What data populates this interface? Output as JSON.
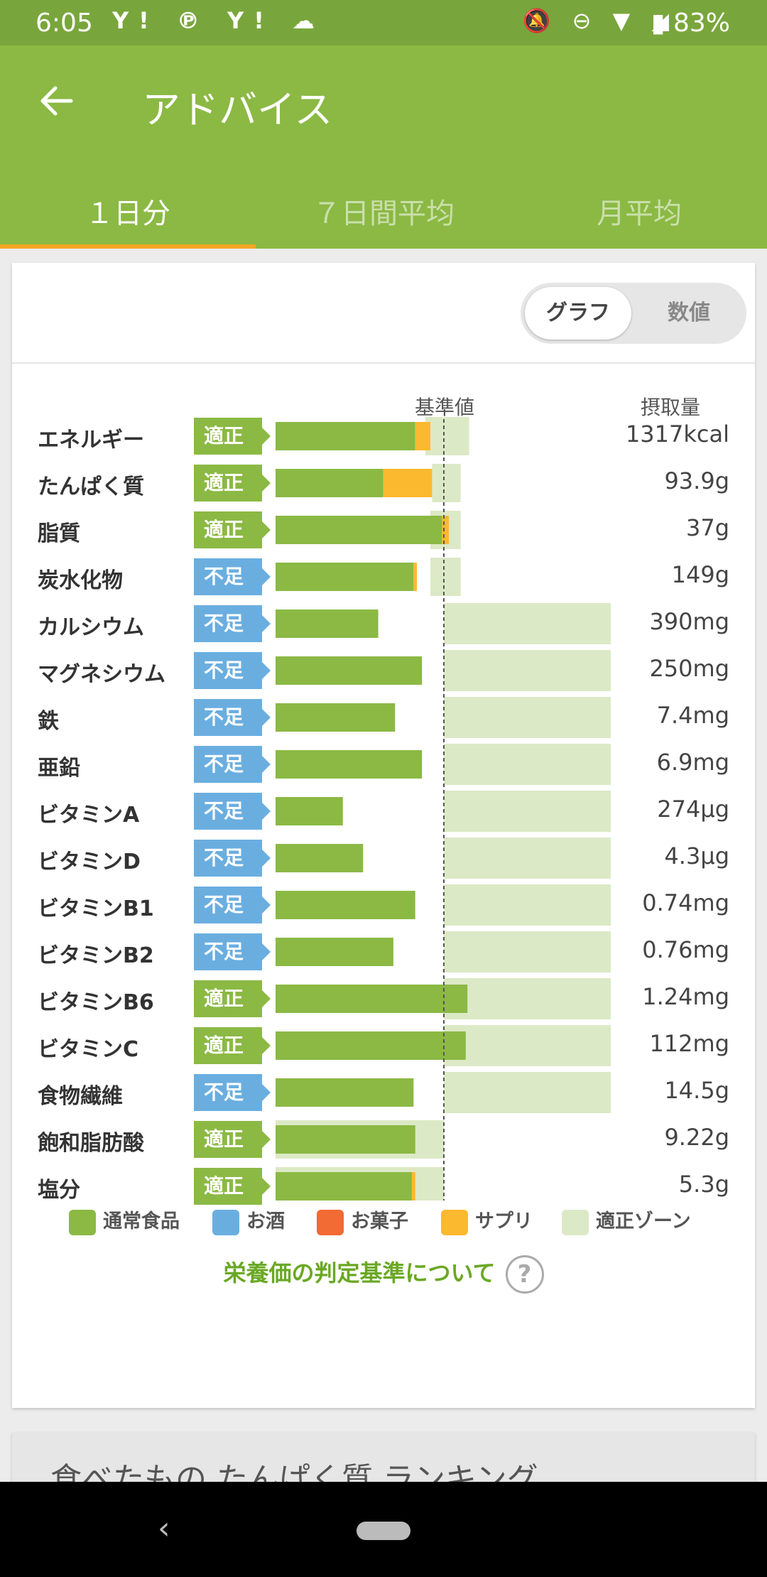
{
  "status": {
    "time": "6:05",
    "left_icons": "Y! ℗ Y! ☁",
    "right_icons": "🔕 ⊖ ▼ ◢",
    "battery": "▮ 83%"
  },
  "appbar": {
    "title": "アドバイス"
  },
  "tabs": [
    {
      "label": "１日分",
      "active": true
    },
    {
      "label": "７日間平均",
      "active": false
    },
    {
      "label": "月平均",
      "active": false
    }
  ],
  "toggle": {
    "graph": "グラフ",
    "numbers": "数値"
  },
  "table": {
    "header_ref": "基準値",
    "header_amount": "摂取量",
    "badge_ok": "適正",
    "badge_low": "不足"
  },
  "chart_data": {
    "type": "bar",
    "title": "",
    "reference_line": "基準値",
    "rows": [
      {
        "name": "エネルギー",
        "status": "適正",
        "amount": "1317kcal",
        "normal": 0.83,
        "supplement": 0.09,
        "zone": [
          0.89,
          1.15
        ]
      },
      {
        "name": "たんぱく質",
        "status": "適正",
        "amount": "93.9g",
        "normal": 0.64,
        "supplement": 0.29,
        "zone": [
          0.93,
          1.1
        ]
      },
      {
        "name": "脂質",
        "status": "適正",
        "amount": "37g",
        "normal": 0.99,
        "supplement": 0.04,
        "zone": [
          0.92,
          1.1
        ]
      },
      {
        "name": "炭水化物",
        "status": "不足",
        "amount": "149g",
        "normal": 0.82,
        "supplement": 0.02,
        "zone": [
          0.92,
          1.1
        ]
      },
      {
        "name": "カルシウム",
        "status": "不足",
        "amount": "390mg",
        "normal": 0.61,
        "supplement": 0,
        "zone": [
          1.0,
          2.0
        ]
      },
      {
        "name": "マグネシウム",
        "status": "不足",
        "amount": "250mg",
        "normal": 0.87,
        "supplement": 0,
        "zone": [
          1.0,
          2.0
        ]
      },
      {
        "name": "鉄",
        "status": "不足",
        "amount": "7.4mg",
        "normal": 0.71,
        "supplement": 0,
        "zone": [
          1.0,
          2.0
        ]
      },
      {
        "name": "亜鉛",
        "status": "不足",
        "amount": "6.9mg",
        "normal": 0.87,
        "supplement": 0,
        "zone": [
          1.0,
          2.0
        ]
      },
      {
        "name": "ビタミンA",
        "status": "不足",
        "amount": "274μg",
        "normal": 0.4,
        "supplement": 0,
        "zone": [
          1.0,
          2.0
        ]
      },
      {
        "name": "ビタミンD",
        "status": "不足",
        "amount": "4.3μg",
        "normal": 0.52,
        "supplement": 0,
        "zone": [
          1.0,
          2.0
        ]
      },
      {
        "name": "ビタミンB1",
        "status": "不足",
        "amount": "0.74mg",
        "normal": 0.83,
        "supplement": 0,
        "zone": [
          1.0,
          2.0
        ]
      },
      {
        "name": "ビタミンB2",
        "status": "不足",
        "amount": "0.76mg",
        "normal": 0.7,
        "supplement": 0,
        "zone": [
          1.0,
          2.0
        ]
      },
      {
        "name": "ビタミンB6",
        "status": "適正",
        "amount": "1.24mg",
        "normal": 1.14,
        "supplement": 0,
        "zone": [
          1.0,
          2.0
        ]
      },
      {
        "name": "ビタミンC",
        "status": "適正",
        "amount": "112mg",
        "normal": 1.13,
        "supplement": 0,
        "zone": [
          1.0,
          2.0
        ]
      },
      {
        "name": "食物繊維",
        "status": "不足",
        "amount": "14.5g",
        "normal": 0.82,
        "supplement": 0,
        "zone": [
          1.0,
          2.0
        ]
      },
      {
        "name": "飽和脂肪酸",
        "status": "適正",
        "amount": "9.22g",
        "normal": 0.83,
        "supplement": 0,
        "zone": [
          0.0,
          1.0
        ]
      },
      {
        "name": "塩分",
        "status": "適正",
        "amount": "5.3g",
        "normal": 0.81,
        "supplement": 0.02,
        "zone": [
          0.0,
          1.0
        ]
      }
    ],
    "legend": [
      "通常食品",
      "お酒",
      "お菓子",
      "サプリ",
      "適正ゾーン"
    ],
    "colors": {
      "normal": "#8bb944",
      "alcohol": "#6aaee0",
      "snack": "#f26a34",
      "supplement": "#fbb92f",
      "zone": "#dce9c6"
    }
  },
  "legend": [
    {
      "label": "通常食品",
      "color": "#8bb944"
    },
    {
      "label": "お酒",
      "color": "#6aaee0"
    },
    {
      "label": "お菓子",
      "color": "#f26a34"
    },
    {
      "label": "サプリ",
      "color": "#fbb92f"
    },
    {
      "label": "適正ゾーン",
      "color": "#dce9c6"
    }
  ],
  "link": {
    "text": "栄養価の判定基準について",
    "icon": "help-icon"
  },
  "ranking": {
    "title": "食べたもの たんぱく質 ランキング"
  },
  "nav": {
    "back": "‹"
  }
}
